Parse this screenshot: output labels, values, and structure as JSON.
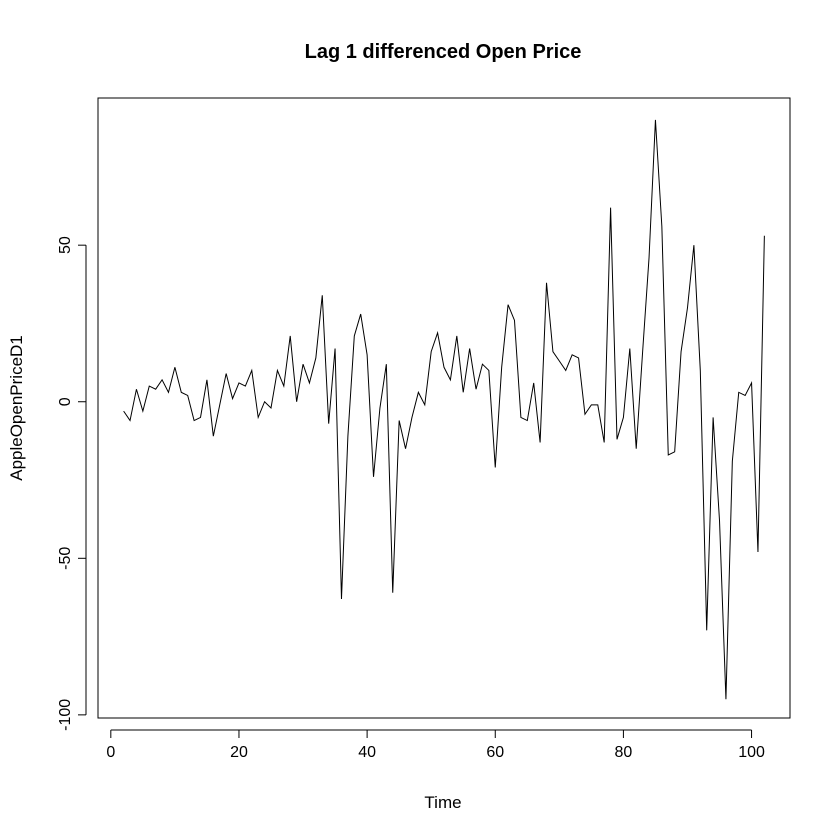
{
  "chart_data": {
    "type": "line",
    "title": "Lag 1 differenced Open Price",
    "xlabel": "Time",
    "ylabel": "AppleOpenPriceD1",
    "xlim": [
      -2,
      106
    ],
    "ylim": [
      -101,
      97
    ],
    "x_ticks": [
      0,
      20,
      40,
      60,
      80,
      100
    ],
    "x_tick_labels": [
      "0",
      "20",
      "40",
      "60",
      "80",
      "100"
    ],
    "y_ticks": [
      -100,
      -50,
      0,
      50
    ],
    "y_tick_labels": [
      "-100",
      "-50",
      "0",
      "50"
    ],
    "grid": false,
    "legend": "none",
    "line_color": "#000000",
    "series": [
      {
        "x": [
          2,
          3,
          4,
          5,
          6,
          7,
          8,
          9,
          10,
          11,
          12,
          13,
          14,
          15,
          16,
          17,
          18,
          19,
          20,
          21,
          22,
          23,
          24,
          25,
          26,
          27,
          28,
          29,
          30,
          31,
          32,
          33,
          34,
          35,
          36,
          37,
          38,
          39,
          40,
          41,
          42,
          43,
          44,
          45,
          46,
          47,
          48,
          49,
          50,
          51,
          52,
          53,
          54,
          55,
          56,
          57,
          58,
          59,
          60,
          61,
          62,
          63,
          64,
          65,
          66,
          67,
          68,
          69,
          70,
          71,
          72,
          73,
          74,
          75,
          76,
          77,
          78,
          79,
          80,
          81,
          82,
          83,
          84,
          85,
          86,
          87,
          88,
          89,
          90,
          91,
          92,
          93,
          94,
          95,
          96,
          97,
          98,
          99,
          100,
          101,
          102
        ],
        "values": [
          -3,
          -6,
          4,
          -3,
          5,
          4,
          7,
          3,
          11,
          3,
          2,
          -6,
          -5,
          7,
          -11,
          -1,
          9,
          1,
          6,
          5,
          10,
          -5,
          0,
          -2,
          10,
          5,
          21,
          0,
          12,
          6,
          14,
          34,
          -7,
          17,
          -63,
          -11,
          21,
          28,
          15,
          -24,
          -2,
          12,
          -61,
          -6,
          -15,
          -5,
          3,
          -1,
          16,
          22,
          11,
          7,
          21,
          3,
          17,
          4,
          12,
          10,
          -21,
          11,
          31,
          26,
          -5,
          -6,
          6,
          -13,
          38,
          16,
          13,
          10,
          15,
          14,
          -4,
          -1,
          -1,
          -13,
          62,
          -12,
          -5,
          17,
          -15,
          16,
          46,
          90,
          56,
          -17,
          -16,
          16,
          30,
          50,
          10,
          -73,
          -5,
          -38,
          -95,
          -19,
          3,
          2,
          6,
          -48,
          53
        ]
      }
    ]
  }
}
